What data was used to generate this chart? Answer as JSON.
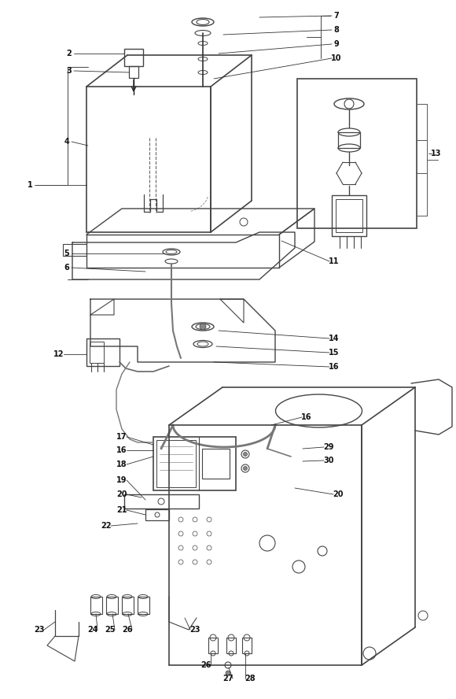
{
  "bg_color": "#ffffff",
  "line_color": "#444444",
  "label_color": "#111111",
  "label_fontsize": 7.0,
  "figsize": [
    5.8,
    8.88
  ],
  "dpi": 100,
  "xlim": [
    0,
    580
  ],
  "ylim": [
    0,
    888
  ]
}
